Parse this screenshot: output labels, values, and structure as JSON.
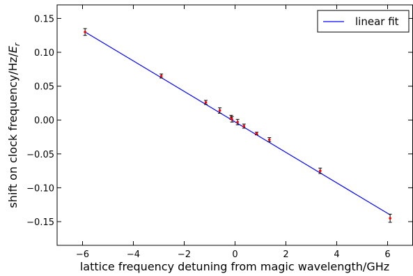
{
  "chart_data": {
    "type": "scatter",
    "xlabel": "lattice frequency detuning from magic wavelength/GHz",
    "ylabel": "shift on clock frequency/Hz/",
    "ylabel_math_base": "E",
    "ylabel_math_sub": "r",
    "xlim": [
      -7,
      7
    ],
    "ylim": [
      -0.185,
      0.17
    ],
    "xticks": [
      -6,
      -4,
      -2,
      0,
      2,
      4,
      6
    ],
    "xtick_labels": [
      "−6",
      "−4",
      "−2",
      "0",
      "2",
      "4",
      "6"
    ],
    "yticks": [
      0.15,
      0.1,
      0.05,
      0.0,
      -0.05,
      -0.1,
      -0.15
    ],
    "ytick_labels": [
      "0.15",
      "0.10",
      "0.05",
      "0.00",
      "−0.05",
      "−0.10",
      "−0.15"
    ],
    "grid": false,
    "legend_position": "top-right",
    "points": [
      {
        "x": -5.9,
        "y": 0.13,
        "err": 0.005
      },
      {
        "x": -2.9,
        "y": 0.065,
        "err": 0.003
      },
      {
        "x": -1.15,
        "y": 0.026,
        "err": 0.003
      },
      {
        "x": -0.6,
        "y": 0.014,
        "err": 0.004
      },
      {
        "x": -0.15,
        "y": 0.004,
        "err": 0.003
      },
      {
        "x": -0.12,
        "y": 0.001,
        "err": 0.004
      },
      {
        "x": 0.1,
        "y": -0.003,
        "err": 0.004
      },
      {
        "x": 0.35,
        "y": -0.009,
        "err": 0.003
      },
      {
        "x": 0.85,
        "y": -0.02,
        "err": 0.002
      },
      {
        "x": 1.35,
        "y": -0.029,
        "err": 0.003
      },
      {
        "x": 3.35,
        "y": -0.075,
        "err": 0.004
      },
      {
        "x": 6.1,
        "y": -0.145,
        "err": 0.006
      }
    ],
    "series": [
      {
        "name": "linear fit",
        "type": "line",
        "x": [
          -5.9,
          6.1
        ],
        "y": [
          0.13,
          -0.14
        ]
      }
    ],
    "colors": {
      "fit": "#0000ff",
      "points": "#ff0000",
      "errorbars": "#000000"
    }
  }
}
